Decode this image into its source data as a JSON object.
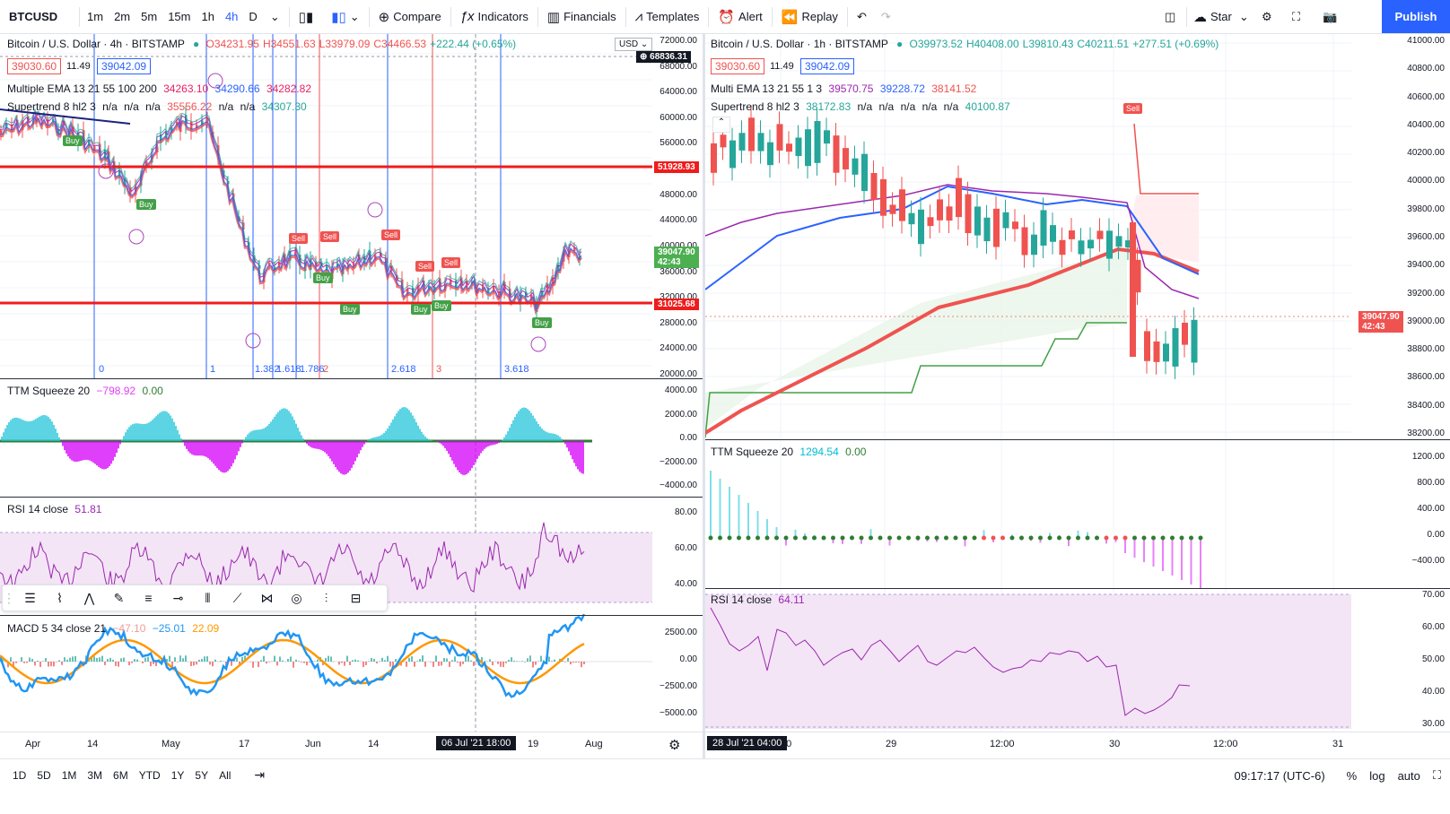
{
  "toolbar": {
    "symbol": "BTCUSD",
    "timeframes": [
      "1m",
      "2m",
      "5m",
      "15m",
      "1h",
      "4h",
      "D"
    ],
    "active_timeframe": "4h",
    "compare": "Compare",
    "indicators": "Indicators",
    "financials": "Financials",
    "templates": "Templates",
    "alert": "Alert",
    "replay": "Replay",
    "star": "Star",
    "publish": "Publish"
  },
  "left_chart": {
    "title": "Bitcoin / U.S. Dollar · 4h · BITSTAMP",
    "ohlc": {
      "o": "O34231.95",
      "h": "H34551.63",
      "l": "L33979.09",
      "c": "C34466.53",
      "chg": "+222.44 (+0.65%)"
    },
    "sell_price": "39030.60",
    "spread": "11.49",
    "buy_price": "39042.09",
    "currency": "USD",
    "ema_legend": {
      "name": "Multiple EMA 13 21 55 100 200",
      "v1": "34263.10",
      "v2": "34290.66",
      "v3": "34282.82"
    },
    "supertrend_legend": {
      "name": "Supertrend 8 hl2 3",
      "v1": "n/a",
      "v2": "n/a",
      "v3": "n/a",
      "v4": "35556.22",
      "v5": "n/a",
      "v6": "n/a",
      "v7": "34307.30"
    },
    "price_scale": [
      "72000.00",
      "68000.00",
      "64000.00",
      "60000.00",
      "56000.00",
      "52000.00",
      "48000.00",
      "44000.00",
      "40000.00",
      "36000.00",
      "32000.00",
      "28000.00",
      "24000.00",
      "20000.00"
    ],
    "tags": {
      "top": "68836.31",
      "red_line": "51928.93",
      "last": "39047.90",
      "countdown": "42:43",
      "red_line2": "31025.68"
    },
    "fib_labels": [
      "0",
      "1",
      "1.382",
      "1.618",
      "1.786",
      "2",
      "2.618",
      "3",
      "3.618"
    ],
    "ttm": {
      "name": "TTM Squeeze 20",
      "v1": "−798.92",
      "v2": "0.00",
      "scale": [
        "4000.00",
        "2000.00",
        "0.00",
        "−2000.00",
        "−4000.00"
      ]
    },
    "rsi": {
      "name": "RSI 14 close",
      "v1": "51.81",
      "scale": [
        "80.00",
        "60.00",
        "40.00"
      ]
    },
    "macd": {
      "name": "MACD 5 34 close 21",
      "v1": "−47.10",
      "v2": "−25.01",
      "v3": "22.09",
      "scale": [
        "2500.00",
        "0.00",
        "−2500.00",
        "−5000.00"
      ]
    },
    "xaxis": [
      "Apr",
      "14",
      "May",
      "17",
      "Jun",
      "14",
      "19",
      "Aug"
    ],
    "x_highlight": "06 Jul '21   18:00",
    "signals": [
      "Buy",
      "Buy",
      "Sell",
      "Sell",
      "Sell",
      "Sell",
      "Sell",
      "Buy",
      "Buy",
      "Buy",
      "Buy",
      "Buy"
    ]
  },
  "right_chart": {
    "title": "Bitcoin / U.S. Dollar · 1h · BITSTAMP",
    "ohlc": {
      "o": "O39973.52",
      "h": "H40408.00",
      "l": "L39810.43",
      "c": "C40211.51",
      "chg": "+277.51 (+0.69%)"
    },
    "sell_price": "39030.60",
    "spread": "11.49",
    "buy_price": "39042.09",
    "ema_legend": {
      "name": "Multi EMA 13 21 55 1 3",
      "v1": "39570.75",
      "v2": "39228.72",
      "v3": "38141.52"
    },
    "supertrend_legend": {
      "name": "Supertrend 8 hl2 3",
      "v1": "38172.83",
      "v2": "n/a",
      "v3": "n/a",
      "v4": "n/a",
      "v5": "n/a",
      "v6": "n/a",
      "v7": "40100.87"
    },
    "price_scale": [
      "41000.00",
      "40800.00",
      "40600.00",
      "40400.00",
      "40200.00",
      "40000.00",
      "39800.00",
      "39600.00",
      "39400.00",
      "39200.00",
      "39000.00",
      "38800.00",
      "38600.00",
      "38400.00",
      "38200.00"
    ],
    "tags": {
      "last": "39047.90",
      "countdown": "42:43"
    },
    "sell_signal": "Sell",
    "ttm": {
      "name": "TTM Squeeze 20",
      "v1": "1294.54",
      "v2": "0.00",
      "scale": [
        "1200.00",
        "800.00",
        "400.00",
        "0.00",
        "−400.00"
      ]
    },
    "rsi": {
      "name": "RSI 14 close",
      "v1": "64.11",
      "scale": [
        "70.00",
        "60.00",
        "50.00",
        "40.00",
        "30.00"
      ]
    },
    "xaxis": [
      "00",
      "29",
      "12:00",
      "30",
      "12:00",
      "31"
    ],
    "x_highlight": "28 Jul '21   04:00"
  },
  "bottom": {
    "ranges": [
      "1D",
      "5D",
      "1M",
      "3M",
      "6M",
      "YTD",
      "1Y",
      "5Y",
      "All"
    ],
    "time": "09:17:17 (UTC-6)",
    "percent": "%",
    "log": "log",
    "auto": "auto"
  },
  "colors": {
    "accent": "#2962ff",
    "up": "#26a69a",
    "down": "#ef5350",
    "rsi_fill": "#f3e5f5",
    "ttm_pos": "#00bcd4",
    "ttm_neg": "#e040fb"
  }
}
